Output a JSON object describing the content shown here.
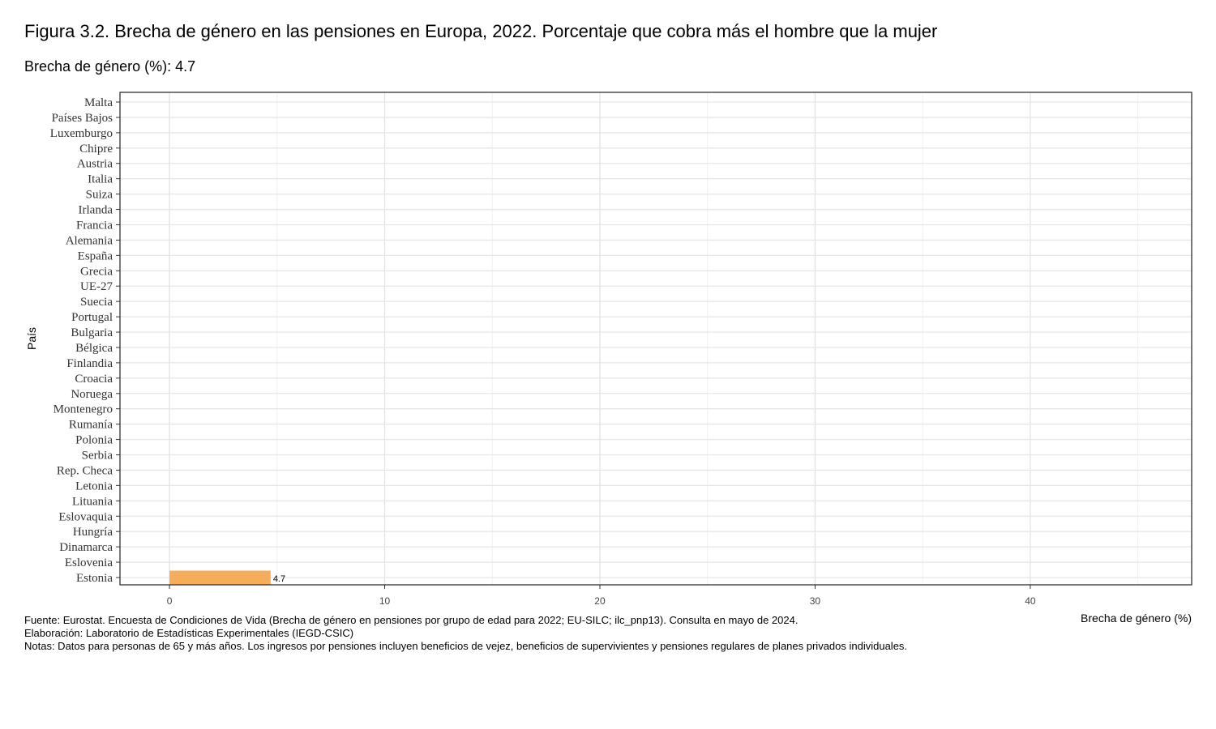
{
  "title": "Figura 3.2. Brecha de género en las pensiones en Europa, 2022. Porcentaje que cobra más el hombre que la mujer",
  "subtitle": "Brecha de género (%): 4.7",
  "notes": {
    "source": "Fuente: Eurostat. Encuesta de Condiciones de Vida (Brecha de género en pensiones por grupo de edad para 2022; EU-SILC; ilc_pnp13). Consulta en mayo de 2024.",
    "elaboration": "Elaboración: Laboratorio de Estadísticas Experimentales (IEGD-CSIC)",
    "notes": "Notas: Datos para personas de 65 y más años. Los ingresos por pensiones incluyen beneficios de vejez, beneficios de supervivientes y pensiones regulares de planes privados individuales."
  },
  "chart_data": {
    "type": "bar",
    "orientation": "horizontal",
    "categories": [
      "Malta",
      "Países Bajos",
      "Luxemburgo",
      "Chipre",
      "Austria",
      "Italia",
      "Suiza",
      "Irlanda",
      "Francia",
      "Alemania",
      "España",
      "Grecia",
      "UE-27",
      "Suecia",
      "Portugal",
      "Bulgaria",
      "Bélgica",
      "Finlandia",
      "Croacia",
      "Noruega",
      "Montenegro",
      "Rumanía",
      "Polonia",
      "Serbia",
      "Rep. Checa",
      "Letonia",
      "Lituania",
      "Eslovaquia",
      "Hungría",
      "Dinamarca",
      "Eslovenia",
      "Estonia"
    ],
    "values": [
      null,
      null,
      null,
      null,
      null,
      null,
      null,
      null,
      null,
      null,
      null,
      null,
      null,
      null,
      null,
      null,
      null,
      null,
      null,
      null,
      null,
      null,
      null,
      null,
      null,
      null,
      null,
      null,
      null,
      null,
      null,
      4.7
    ],
    "data_labels": [
      "",
      "",
      "",
      "",
      "",
      "",
      "",
      "",
      "",
      "",
      "",
      "",
      "",
      "",
      "",
      "",
      "",
      "",
      "",
      "",
      "",
      "",
      "",
      "",
      "",
      "",
      "",
      "",
      "",
      "",
      "",
      "4.7"
    ],
    "xlabel": "Brecha de género (%)",
    "ylabel": "País",
    "xlim": [
      -2.3,
      47.5
    ],
    "xticks": [
      0,
      10,
      20,
      30,
      40
    ],
    "xtick_labels": [
      "0",
      "10",
      "20",
      "30",
      "40"
    ],
    "grid": true,
    "bar_color": "#F5AD5C"
  }
}
